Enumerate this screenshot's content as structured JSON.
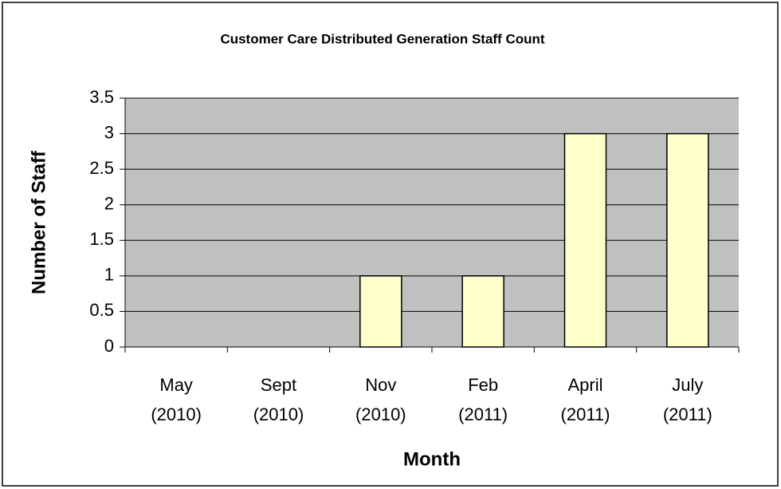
{
  "chart_data": {
    "type": "bar",
    "title": "Customer Care Distributed Generation Staff Count",
    "x_label": "Month",
    "y_label": "Number of Staff",
    "categories": [
      "May (2010)",
      "Sept (2010)",
      "Nov (2010)",
      "Feb (2011)",
      "April (2011)",
      "July (2011)"
    ],
    "values": [
      0,
      0,
      1,
      1,
      3,
      3
    ],
    "color": "#ffffcc",
    "ylim": [
      0,
      3.5
    ],
    "yticks": [
      0,
      0.5,
      1,
      1.5,
      2,
      2.5,
      3,
      3.5
    ],
    "grid": true
  }
}
